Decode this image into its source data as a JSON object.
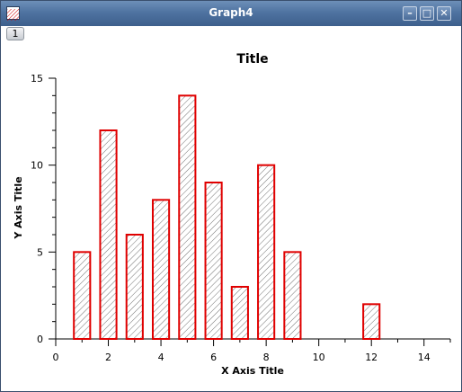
{
  "window": {
    "title": "Graph4",
    "tab_label": "1"
  },
  "chart_data": {
    "type": "bar",
    "title": "Title",
    "xlabel": "X Axis Title",
    "ylabel": "Y Axis Title",
    "xlim": [
      0,
      15
    ],
    "ylim": [
      0,
      15
    ],
    "x_ticks": [
      "0",
      "2",
      "4",
      "6",
      "8",
      "10",
      "12",
      "14"
    ],
    "y_ticks": [
      "0",
      "5",
      "10",
      "15"
    ],
    "grid": false,
    "fill_pattern": "diagonal-hatch",
    "bar_color": "#e00000",
    "categories": [
      0,
      1,
      2,
      3,
      4,
      5,
      6,
      7,
      8,
      9,
      10,
      11,
      12,
      13,
      14,
      15
    ],
    "values": [
      0,
      5,
      12,
      6,
      8,
      14,
      9,
      3,
      10,
      5,
      0,
      0,
      2,
      0,
      0,
      0
    ]
  }
}
